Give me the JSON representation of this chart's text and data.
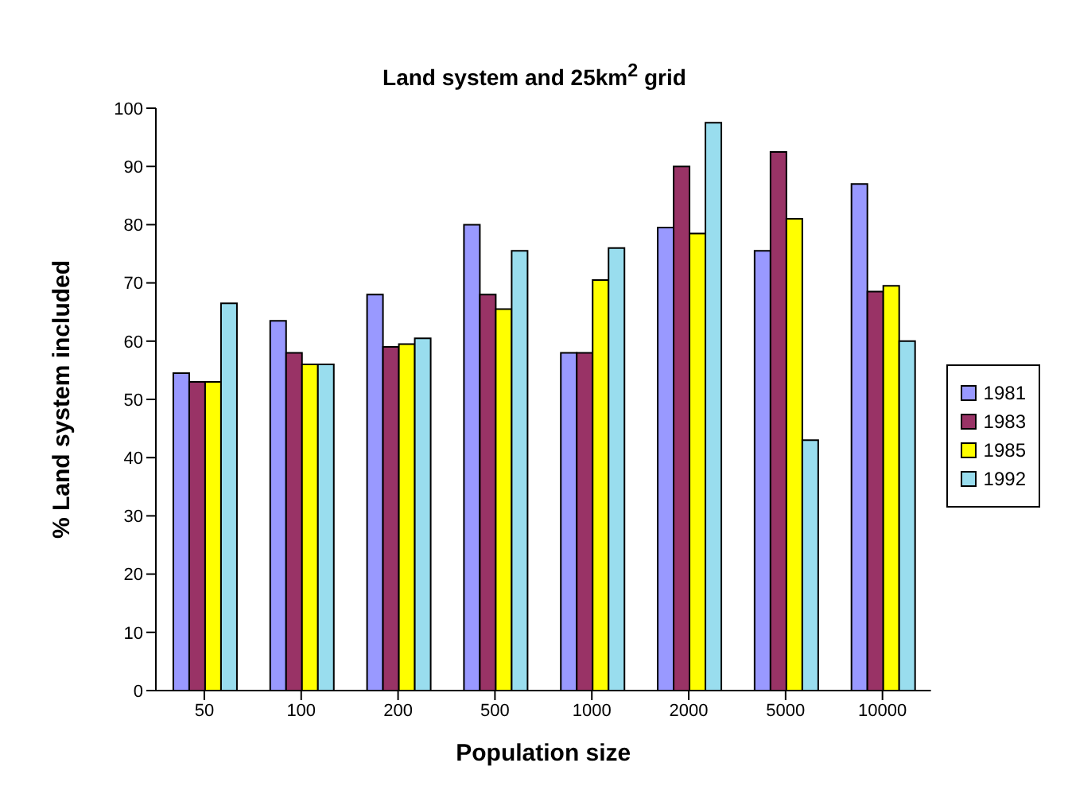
{
  "chart_data": {
    "type": "bar",
    "title": "Land system and 25km$^{2}$ grid",
    "xlabel": "Population size",
    "ylabel": "% Land system included",
    "categories": [
      "50",
      "100",
      "200",
      "500",
      "1000",
      "2000",
      "5000",
      "10000"
    ],
    "series": [
      {
        "name": "1981",
        "color": "#9999ff",
        "values": [
          54.5,
          63.5,
          68,
          80,
          58,
          79.5,
          75.5,
          87
        ]
      },
      {
        "name": "1983",
        "color": "#993366",
        "values": [
          53,
          58,
          59,
          68,
          58,
          90,
          92.5,
          68.5
        ]
      },
      {
        "name": "1985",
        "color": "#ffff00",
        "values": [
          53,
          56,
          59.5,
          65.5,
          70.5,
          78.5,
          81,
          69.5
        ]
      },
      {
        "name": "1992",
        "color": "#99ddee",
        "values": [
          66.5,
          56,
          60.5,
          75.5,
          76,
          97.5,
          43,
          60
        ]
      }
    ],
    "ylim": [
      0,
      100
    ],
    "yticks": [
      0,
      10,
      20,
      30,
      40,
      50,
      60,
      70,
      80,
      90,
      100
    ],
    "grid": false,
    "legend": "right"
  }
}
